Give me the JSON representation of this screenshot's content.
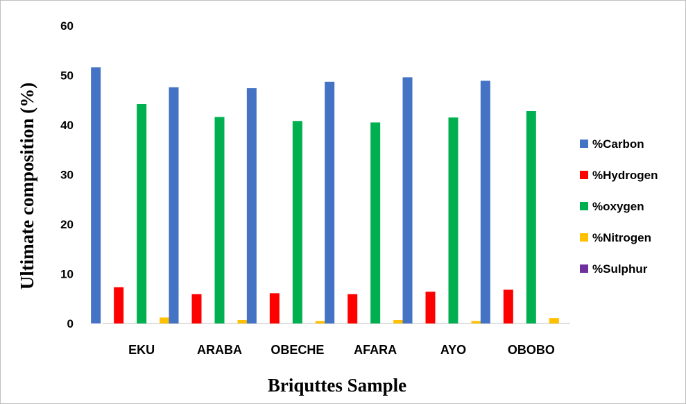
{
  "chart_data": {
    "type": "bar",
    "title": "",
    "xlabel": "Briquttes Sample",
    "ylabel": "Ultimate composition (%)",
    "ylim": [
      0,
      60
    ],
    "yticks": [
      0,
      10,
      20,
      30,
      40,
      50,
      60
    ],
    "grid": false,
    "legend_position": "right",
    "categories": [
      "EKU",
      "ARABA",
      "OBECHE",
      "AFARA",
      "AYO",
      "OBOBO"
    ],
    "series": [
      {
        "name": "%Carbon",
        "color": "#4472C4",
        "values": [
          51.6,
          47.6,
          47.4,
          48.7,
          49.6,
          48.9
        ]
      },
      {
        "name": "%Hydrogen",
        "color": "#FF0000",
        "values": [
          7.3,
          5.9,
          6.1,
          5.9,
          6.4,
          6.8
        ]
      },
      {
        "name": "%oxygen",
        "color": "#00B050",
        "values": [
          44.2,
          41.6,
          40.8,
          40.5,
          41.5,
          42.8
        ]
      },
      {
        "name": "%Nitrogen",
        "color": "#FFC000",
        "values": [
          1.2,
          0.7,
          0.5,
          0.7,
          0.5,
          1.1
        ]
      },
      {
        "name": "%Sulphur",
        "color": "#7030A0",
        "values": [
          0,
          0,
          0,
          0,
          0,
          0
        ]
      }
    ]
  }
}
